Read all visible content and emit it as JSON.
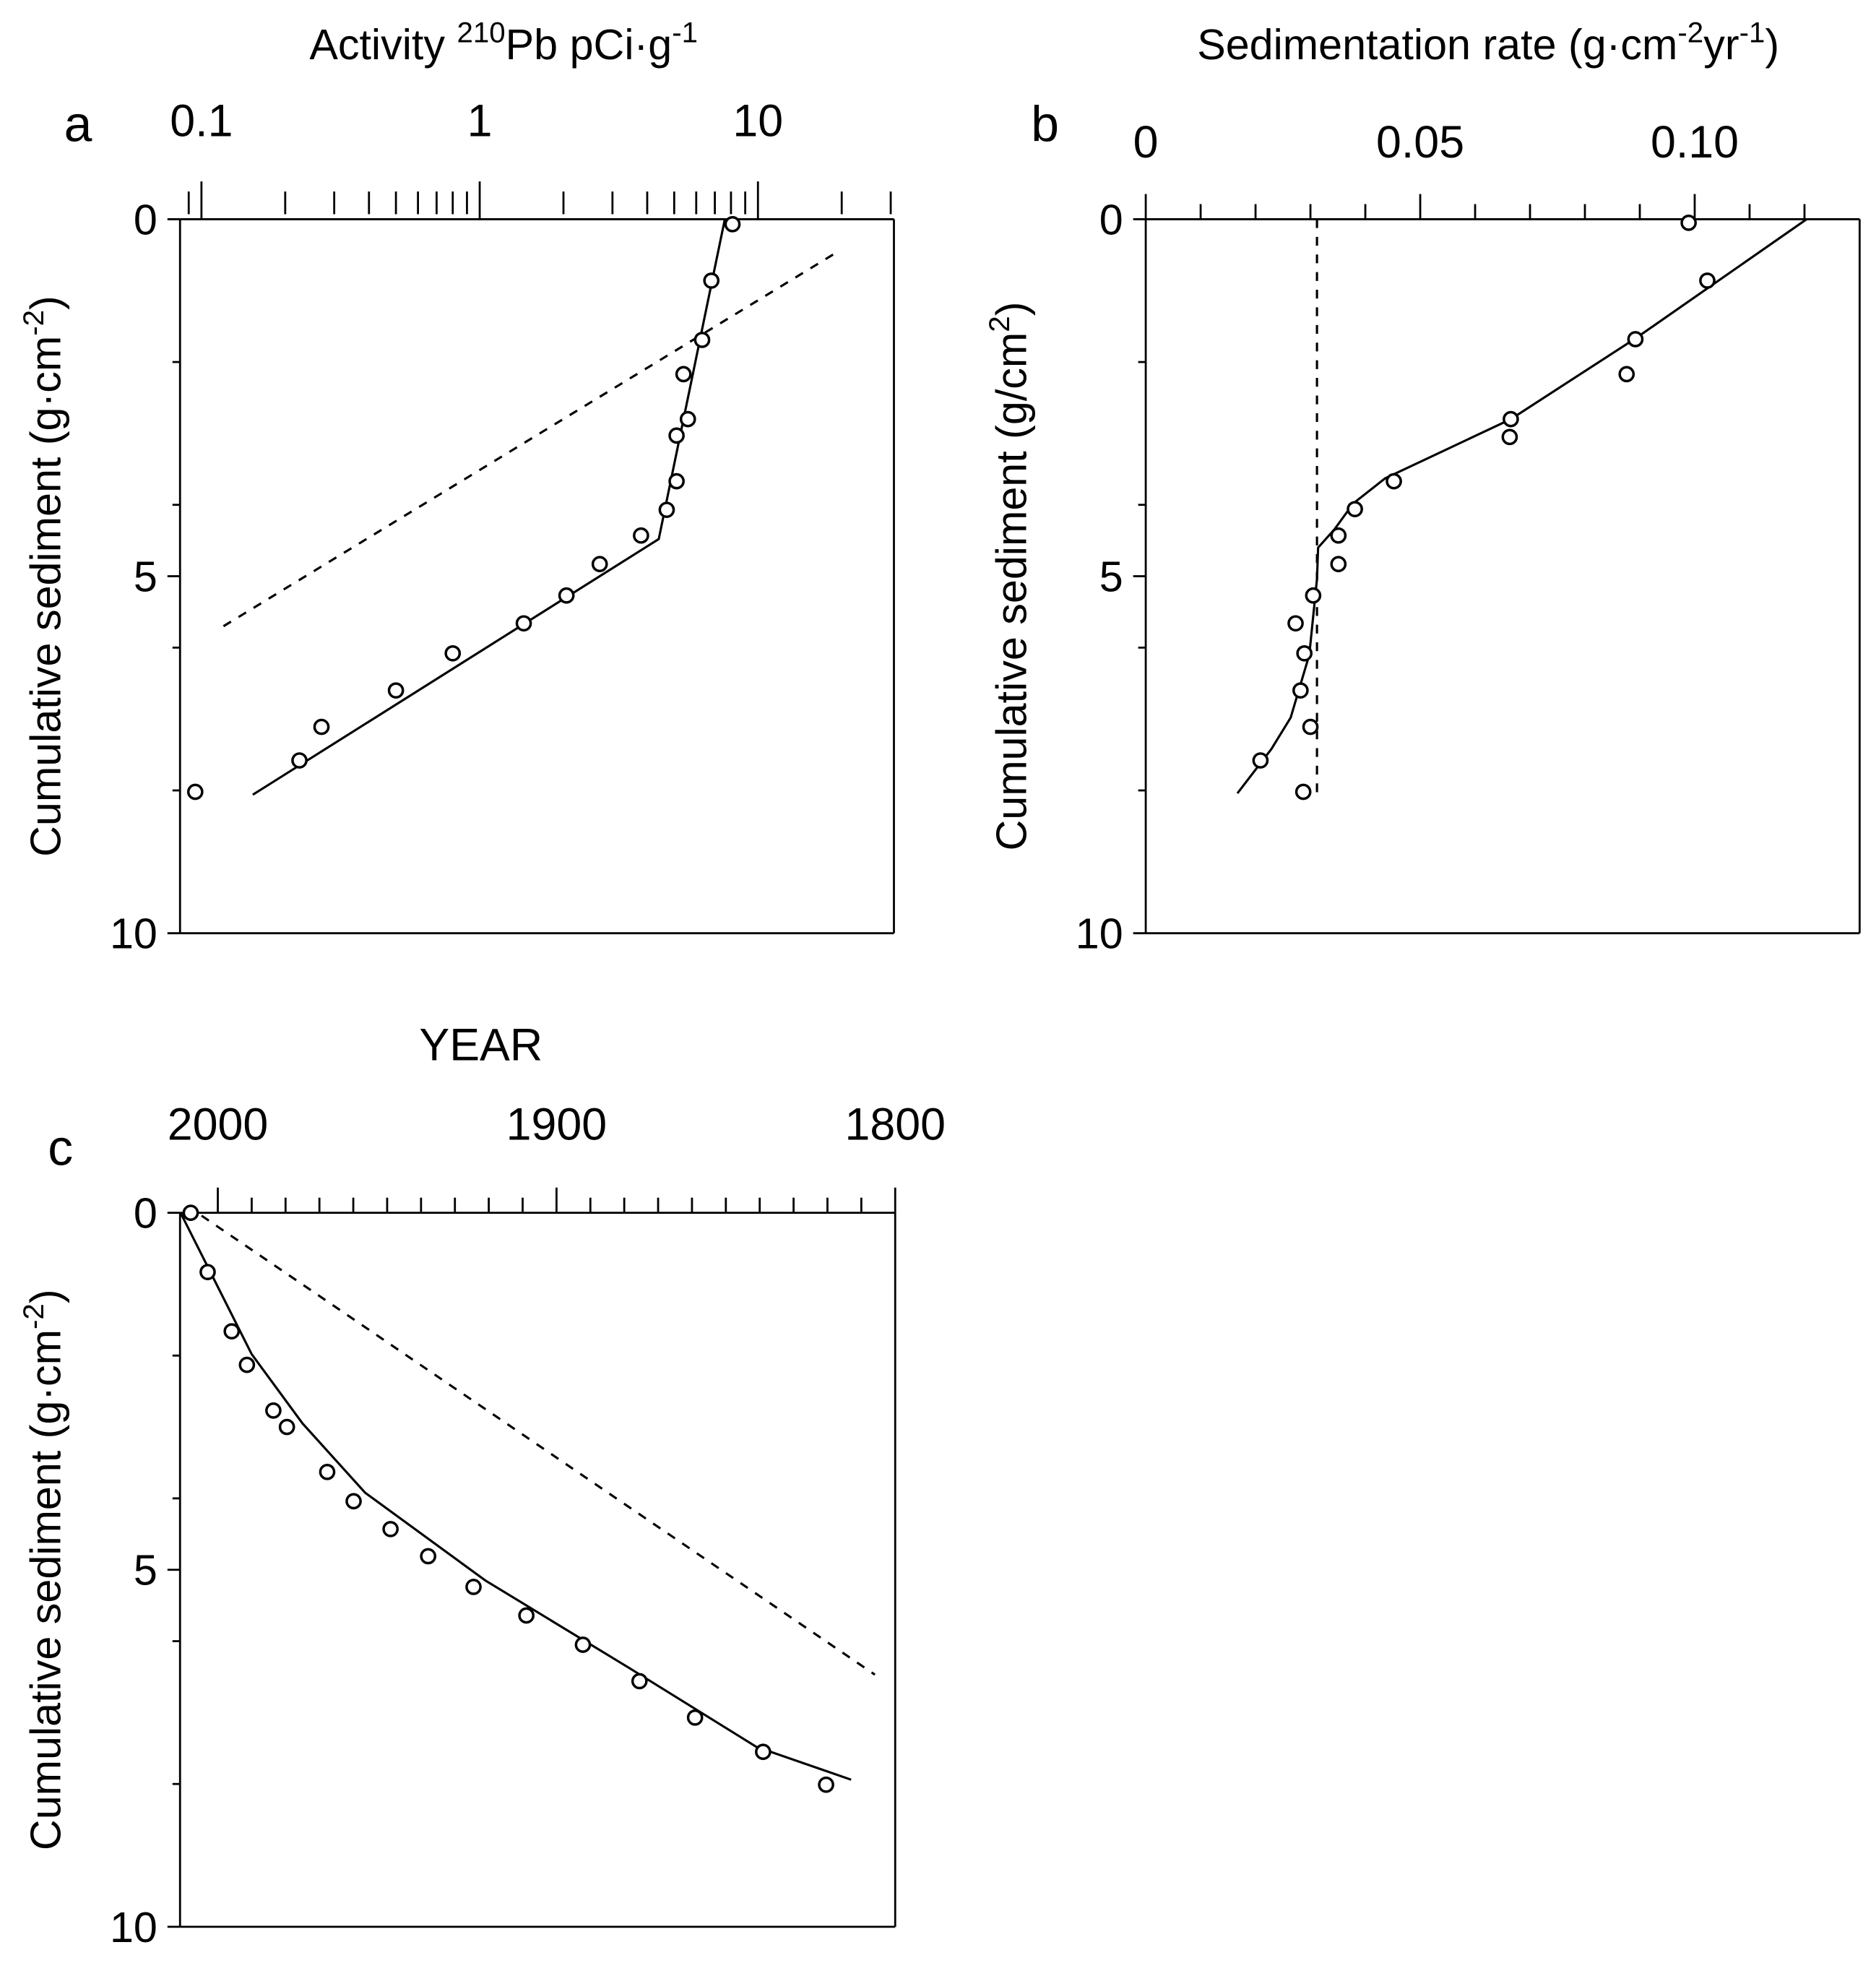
{
  "chart_data": [
    {
      "type": "scatter",
      "panel_label": "a",
      "title": "Activity ²¹⁰Pb pCi·g⁻¹",
      "title_parts": {
        "pre": "Activity ",
        "sup1": "210",
        "mid": "Pb pCi·g",
        "sup2": "-1"
      },
      "xscale": "log",
      "xlim": [
        0.085,
        30
      ],
      "ylim": [
        0,
        10
      ],
      "xticklabels": [
        "0.1",
        "1",
        "10"
      ],
      "xtickvalues": [
        0.1,
        1,
        10
      ],
      "yticklabels": [
        "0",
        "5",
        "10"
      ],
      "ylabel_parts": {
        "pre": "Cumulative sediment (g·cm",
        "sup": "-2",
        "post": ")"
      },
      "points": {
        "x": [
          8.1,
          6.8,
          6.3,
          5.4,
          5.6,
          5.1,
          5.1,
          4.7,
          3.8,
          2.7,
          2.05,
          1.44,
          0.8,
          0.5,
          0.27,
          0.225,
          0.095
        ],
        "y": [
          0.07,
          0.86,
          1.69,
          2.17,
          2.8,
          3.03,
          3.67,
          4.07,
          4.43,
          4.83,
          5.27,
          5.66,
          6.08,
          6.6,
          7.11,
          7.58,
          8.02
        ]
      },
      "fit_line": {
        "x": [
          7.6,
          4.4,
          0.153
        ],
        "y": [
          0,
          4.48,
          8.06
        ]
      },
      "dashed_line": {
        "x": [
          0.12,
          18.7
        ],
        "y": [
          5.7,
          0.49
        ]
      }
    },
    {
      "type": "scatter",
      "panel_label": "b",
      "title_parts": {
        "pre": "Sedimentation rate (g·cm",
        "sup1": "-2",
        "mid": "yr",
        "sup2": "-1",
        "post": ")"
      },
      "xscale": "linear",
      "xlim": [
        0,
        0.13
      ],
      "ylim": [
        0,
        10
      ],
      "xticklabels": [
        "0",
        "0.05",
        "0.10"
      ],
      "xtickvalues": [
        0,
        0.05,
        0.1
      ],
      "yticklabels": [
        "0",
        "5",
        "10"
      ],
      "ylabel_parts": {
        "pre": "Cumulative sediment (g/cm",
        "sup": "2",
        "post": ")"
      },
      "points": {
        "x": [
          0.0989,
          0.1023,
          0.0892,
          0.0876,
          0.0665,
          0.0663,
          0.0452,
          0.0381,
          0.0351,
          0.0351,
          0.0305,
          0.0273,
          0.0289,
          0.0282,
          0.03,
          0.0209,
          0.0287
        ],
        "y": [
          0.05,
          0.86,
          1.68,
          2.17,
          2.8,
          3.05,
          3.67,
          4.06,
          4.43,
          4.83,
          5.27,
          5.66,
          6.08,
          6.6,
          7.11,
          7.58,
          8.02
        ]
      },
      "fit_line": {
        "x": [
          0.1204,
          0.0894,
          0.0665,
          0.0436,
          0.0378,
          0.0344,
          0.0314,
          0.0312,
          0.0298,
          0.0264,
          0.0229,
          0.0167
        ],
        "y": [
          0,
          1.66,
          2.8,
          3.63,
          3.98,
          4.34,
          4.6,
          5.04,
          6.1,
          6.98,
          7.42,
          8.04
        ]
      },
      "dashed_line": {
        "x": [
          0.0312,
          0.0312
        ],
        "y": [
          0,
          8.1
        ]
      }
    },
    {
      "type": "scatter",
      "panel_label": "c",
      "title": "YEAR",
      "xscale": "linear",
      "xlim": [
        2011,
        1800
      ],
      "ylim": [
        0,
        10
      ],
      "xticklabels": [
        "2000",
        "1900",
        "1800"
      ],
      "xtickvalues": [
        2000,
        1900,
        1800
      ],
      "yticklabels": [
        "0",
        "5",
        "10"
      ],
      "ylabel_parts": {
        "pre": "Cumulative sediment (g·cm",
        "sup": "-2",
        "post": ")"
      },
      "points": {
        "x": [
          2008,
          2003,
          1995.9,
          1991.4,
          1983.6,
          1979.6,
          1967.7,
          1959.9,
          1949,
          1937.9,
          1924.5,
          1908.9,
          1892.2,
          1875.5,
          1859.1,
          1839,
          1820.4
        ],
        "y": [
          0,
          0.83,
          1.66,
          2.13,
          2.77,
          3.0,
          3.63,
          4.04,
          4.43,
          4.81,
          5.24,
          5.64,
          6.05,
          6.56,
          7.07,
          7.55,
          8.01
        ]
      },
      "fit_line": {
        "x": [
          2011,
          1990,
          1975,
          1956.5,
          1921,
          1878.4,
          1841,
          1813
        ],
        "y": [
          0,
          1.98,
          2.95,
          3.92,
          5.15,
          6.38,
          7.48,
          7.94
        ]
      },
      "dashed_line": {
        "x": [
          2004.8,
          1806
        ],
        "y": [
          0.04,
          6.47
        ]
      }
    }
  ]
}
